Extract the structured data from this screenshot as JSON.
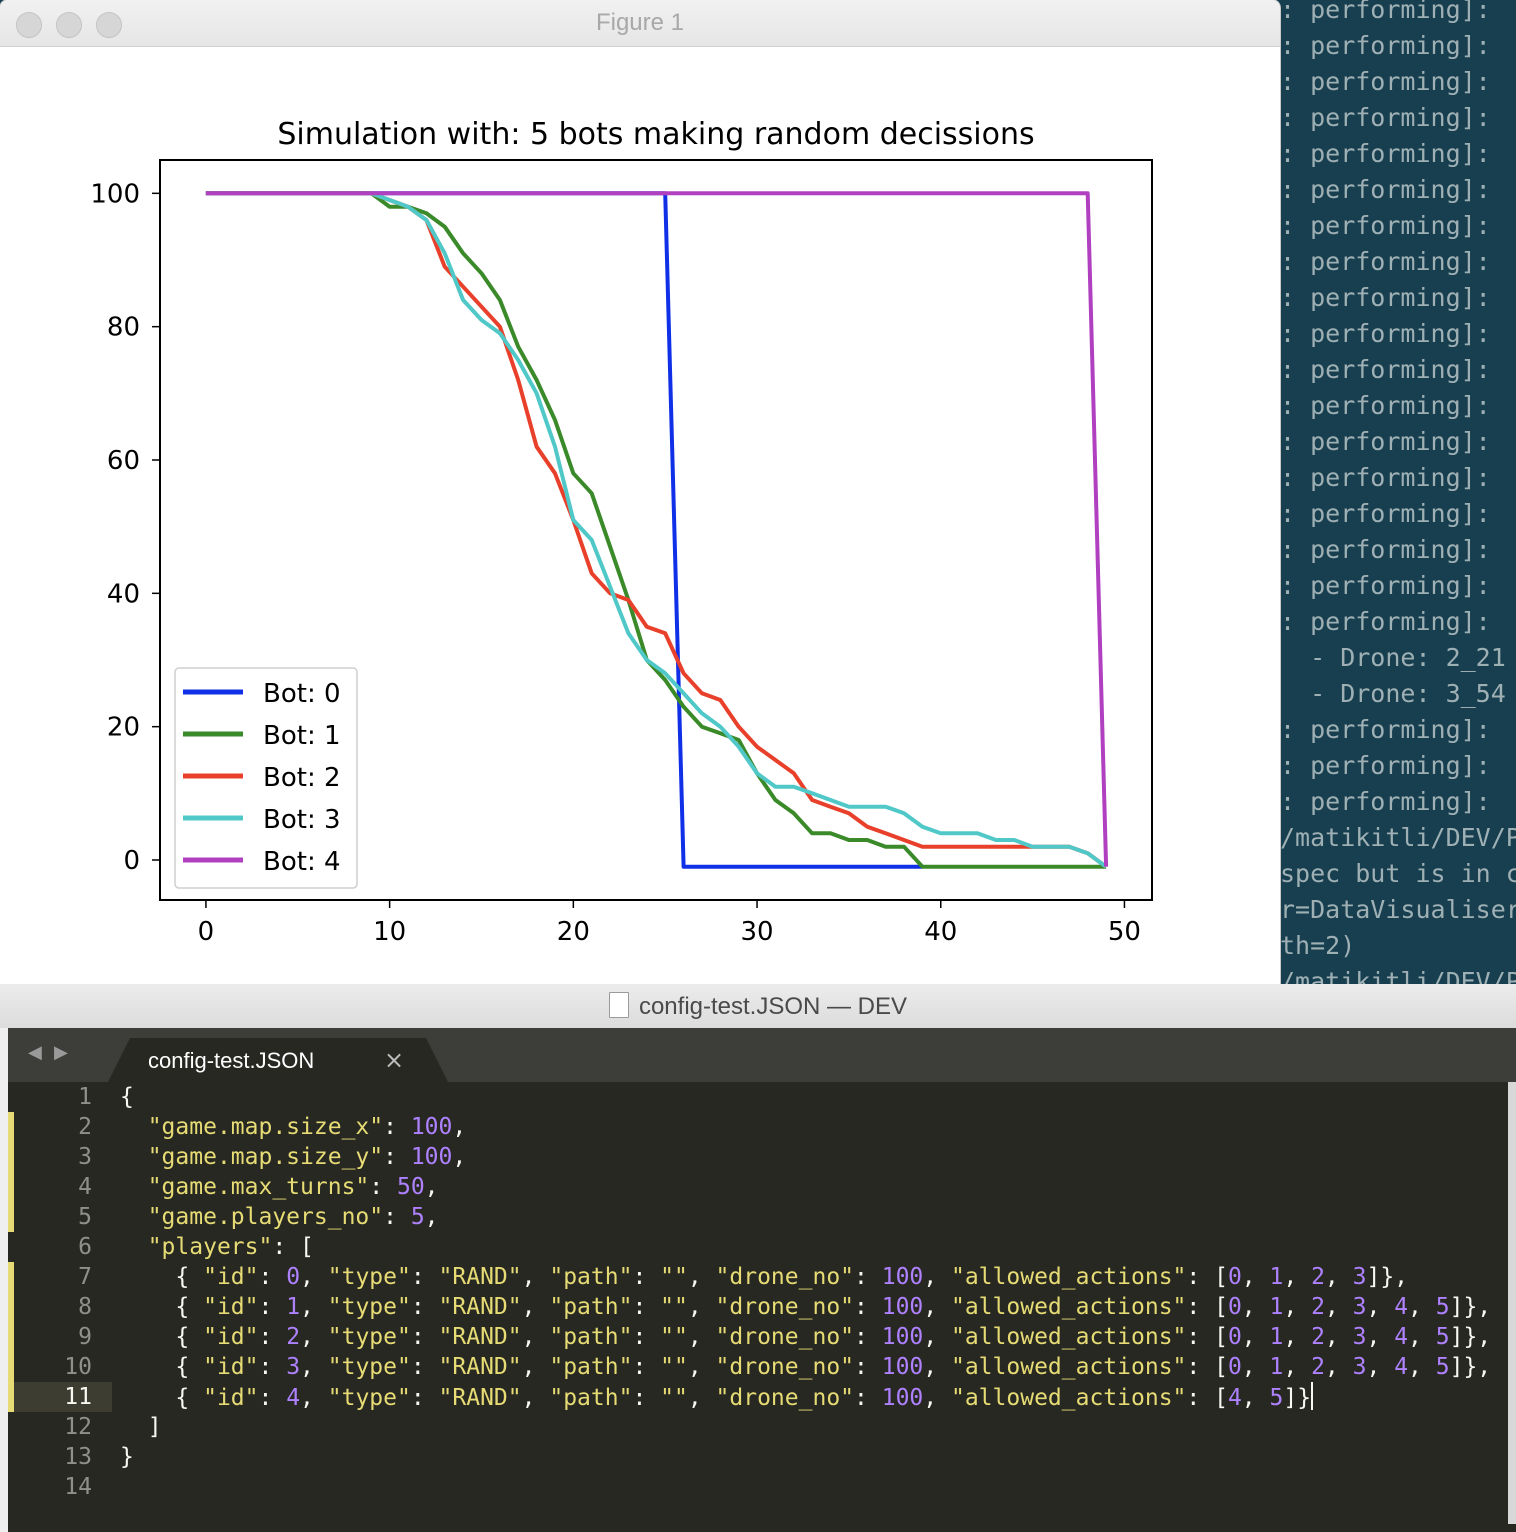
{
  "terminal": {
    "lines": [
      ": performing]:",
      ": performing]:",
      ": performing]:",
      ": performing]:",
      ": performing]:",
      ": performing]:",
      ": performing]:",
      ": performing]:",
      ": performing]:",
      ": performing]:",
      ": performing]:",
      ": performing]:",
      ": performing]:",
      ": performing]:",
      ": performing]:",
      ": performing]:",
      ": performing]:",
      ": performing]:",
      "  - Drone: 2_21",
      "  - Drone: 3_54",
      ": performing]:",
      ": performing]:",
      ": performing]:",
      "/matikitli/DEV/P",
      "spec but is in c",
      "r=DataVisualiser",
      "th=2)",
      "/matikitli/DEV/P"
    ]
  },
  "figure_window": {
    "title": "Figure 1"
  },
  "chart_data": {
    "type": "line",
    "title": "Simulation with: 5 bots making random decissions",
    "xlabel": "",
    "ylabel": "",
    "xlim": [
      -2.5,
      51.5
    ],
    "ylim": [
      -6,
      105
    ],
    "xticks": [
      0,
      10,
      20,
      30,
      40,
      50
    ],
    "yticks": [
      0,
      20,
      40,
      60,
      80,
      100
    ],
    "grid": false,
    "legend_position": "lower-left",
    "series": [
      {
        "name": "Bot: 0",
        "color": "#1030e8",
        "points": [
          [
            0,
            100
          ],
          [
            25,
            100
          ],
          [
            26,
            -1
          ],
          [
            39,
            -1
          ]
        ]
      },
      {
        "name": "Bot: 1",
        "color": "#3a8a2a",
        "points": [
          [
            0,
            100
          ],
          [
            9,
            100
          ],
          [
            10,
            98
          ],
          [
            11,
            98
          ],
          [
            12,
            97
          ],
          [
            13,
            95
          ],
          [
            14,
            91
          ],
          [
            15,
            88
          ],
          [
            16,
            84
          ],
          [
            17,
            77
          ],
          [
            18,
            72
          ],
          [
            19,
            66
          ],
          [
            20,
            58
          ],
          [
            21,
            55
          ],
          [
            22,
            47
          ],
          [
            23,
            39
          ],
          [
            24,
            30
          ],
          [
            25,
            27
          ],
          [
            26,
            23
          ],
          [
            27,
            20
          ],
          [
            28,
            19
          ],
          [
            29,
            18
          ],
          [
            30,
            13
          ],
          [
            31,
            9
          ],
          [
            32,
            7
          ],
          [
            33,
            4
          ],
          [
            34,
            4
          ],
          [
            35,
            3
          ],
          [
            36,
            3
          ],
          [
            37,
            2
          ],
          [
            38,
            2
          ],
          [
            39,
            -1
          ],
          [
            40,
            -1
          ],
          [
            48,
            -1
          ],
          [
            49,
            -1
          ]
        ]
      },
      {
        "name": "Bot: 2",
        "color": "#e8402a",
        "points": [
          [
            0,
            100
          ],
          [
            9,
            100
          ],
          [
            10,
            99
          ],
          [
            11,
            98
          ],
          [
            12,
            96
          ],
          [
            13,
            89
          ],
          [
            14,
            86
          ],
          [
            15,
            83
          ],
          [
            16,
            80
          ],
          [
            17,
            72
          ],
          [
            18,
            62
          ],
          [
            19,
            58
          ],
          [
            20,
            51
          ],
          [
            21,
            43
          ],
          [
            22,
            40
          ],
          [
            23,
            39
          ],
          [
            24,
            35
          ],
          [
            25,
            34
          ],
          [
            26,
            28
          ],
          [
            27,
            25
          ],
          [
            28,
            24
          ],
          [
            29,
            20
          ],
          [
            30,
            17
          ],
          [
            31,
            15
          ],
          [
            32,
            13
          ],
          [
            33,
            9
          ],
          [
            34,
            8
          ],
          [
            35,
            7
          ],
          [
            36,
            5
          ],
          [
            37,
            4
          ],
          [
            38,
            3
          ],
          [
            39,
            2
          ],
          [
            40,
            2
          ],
          [
            44,
            2
          ],
          [
            45,
            2
          ],
          [
            46,
            2
          ],
          [
            47,
            2
          ],
          [
            48,
            1
          ],
          [
            49,
            -1
          ]
        ]
      },
      {
        "name": "Bot: 3",
        "color": "#50c8c8",
        "points": [
          [
            0,
            100
          ],
          [
            9,
            100
          ],
          [
            10,
            99
          ],
          [
            11,
            98
          ],
          [
            12,
            96
          ],
          [
            13,
            91
          ],
          [
            14,
            84
          ],
          [
            15,
            81
          ],
          [
            16,
            79
          ],
          [
            17,
            75
          ],
          [
            18,
            70
          ],
          [
            19,
            62
          ],
          [
            20,
            51
          ],
          [
            21,
            48
          ],
          [
            22,
            41
          ],
          [
            23,
            34
          ],
          [
            24,
            30
          ],
          [
            25,
            28
          ],
          [
            26,
            25
          ],
          [
            27,
            22
          ],
          [
            28,
            20
          ],
          [
            29,
            17
          ],
          [
            30,
            13
          ],
          [
            31,
            11
          ],
          [
            32,
            11
          ],
          [
            33,
            10
          ],
          [
            34,
            9
          ],
          [
            35,
            8
          ],
          [
            36,
            8
          ],
          [
            37,
            8
          ],
          [
            38,
            7
          ],
          [
            39,
            5
          ],
          [
            40,
            4
          ],
          [
            41,
            4
          ],
          [
            42,
            4
          ],
          [
            43,
            3
          ],
          [
            44,
            3
          ],
          [
            45,
            2
          ],
          [
            46,
            2
          ],
          [
            47,
            2
          ],
          [
            48,
            1
          ],
          [
            49,
            -1
          ]
        ]
      },
      {
        "name": "Bot: 4",
        "color": "#b040c0",
        "points": [
          [
            0,
            100
          ],
          [
            48,
            100
          ],
          [
            49,
            -1
          ]
        ]
      }
    ]
  },
  "editor": {
    "window_title": "config-test.JSON — DEV",
    "tab_label": "config-test.JSON",
    "tab_close": "×",
    "nav_back": "◀",
    "nav_forward": "▶",
    "current_line": 11,
    "line_numbers": [
      "1",
      "2",
      "3",
      "4",
      "5",
      "6",
      "7",
      "8",
      "9",
      "10",
      "11",
      "12",
      "13",
      "14"
    ],
    "code_lines": [
      "{",
      "  \"game.map.size_x\": 100,",
      "  \"game.map.size_y\": 100,",
      "  \"game.max_turns\": 50,",
      "  \"game.players_no\": 5,",
      "  \"players\": [",
      "    { \"id\": 0, \"type\": \"RAND\", \"path\": \"\", \"drone_no\": 100, \"allowed_actions\": [0, 1, 2, 3]},",
      "    { \"id\": 1, \"type\": \"RAND\", \"path\": \"\", \"drone_no\": 100, \"allowed_actions\": [0, 1, 2, 3, 4, 5]},",
      "    { \"id\": 2, \"type\": \"RAND\", \"path\": \"\", \"drone_no\": 100, \"allowed_actions\": [0, 1, 2, 3, 4, 5]},",
      "    { \"id\": 3, \"type\": \"RAND\", \"path\": \"\", \"drone_no\": 100, \"allowed_actions\": [0, 1, 2, 3, 4, 5]},",
      "    { \"id\": 4, \"type\": \"RAND\", \"path\": \"\", \"drone_no\": 100, \"allowed_actions\": [4, 5]}",
      "  ]",
      "}",
      ""
    ]
  }
}
